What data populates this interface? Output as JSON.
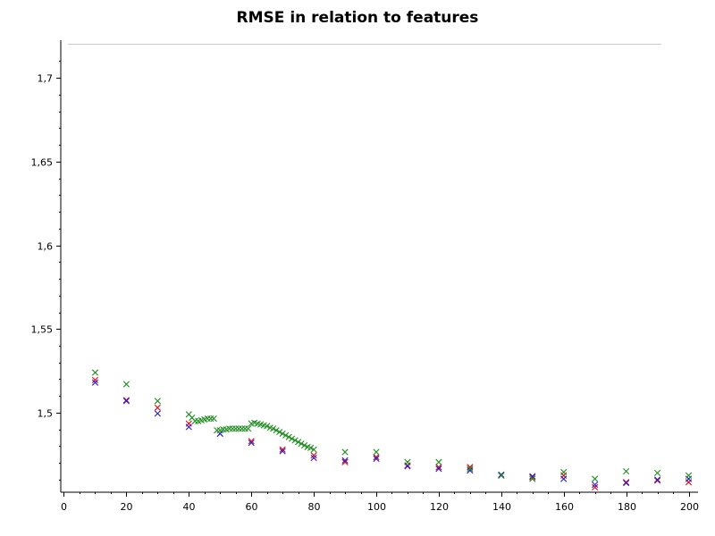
{
  "chart_data": {
    "type": "scatter",
    "title": "RMSE in relation to features",
    "xlabel": "",
    "ylabel": "",
    "xlim": [
      -1,
      203
    ],
    "ylim": [
      1.4525,
      1.7225
    ],
    "x_ticks": [
      0,
      20,
      40,
      60,
      80,
      100,
      120,
      140,
      160,
      180,
      200
    ],
    "x_tick_labels": [
      "0",
      "20",
      "40",
      "60",
      "80",
      "100",
      "120",
      "140",
      "160",
      "180",
      "200"
    ],
    "y_ticks": [
      1.5,
      1.55,
      1.6,
      1.65,
      1.7
    ],
    "y_tick_labels": [
      "1,5",
      "1,55",
      "1,6",
      "1,65",
      "1,7"
    ],
    "grid": false,
    "legend": "none",
    "marker": "x",
    "series": [
      {
        "color": "#e8000b",
        "x": [
          10,
          20,
          30,
          40,
          50,
          60,
          70,
          80,
          90,
          100,
          110,
          120,
          130,
          140,
          150,
          160,
          170,
          180,
          190,
          200
        ],
        "y": [
          1.5195,
          1.5075,
          1.503,
          1.4935,
          1.4875,
          1.483,
          1.478,
          1.4745,
          1.4705,
          1.4735,
          1.4685,
          1.4675,
          1.4675,
          1.4625,
          1.4615,
          1.4625,
          1.4555,
          1.4585,
          1.4595,
          1.4585
        ]
      },
      {
        "color": "#1f1fd6",
        "x": [
          10,
          20,
          30,
          40,
          50,
          60,
          70,
          80,
          90,
          100,
          110,
          120,
          130,
          140,
          150,
          160,
          170,
          180,
          190,
          200
        ],
        "y": [
          1.518,
          1.507,
          1.4995,
          1.4915,
          1.4875,
          1.482,
          1.477,
          1.473,
          1.4715,
          1.4725,
          1.468,
          1.4665,
          1.4655,
          1.463,
          1.462,
          1.4605,
          1.457,
          1.458,
          1.46,
          1.4605
        ]
      },
      {
        "color": "#1f8c1f",
        "x": [
          10,
          20,
          30,
          40,
          41,
          42,
          43,
          44,
          45,
          46,
          47,
          48,
          49,
          50,
          51,
          52,
          53,
          54,
          55,
          56,
          57,
          58,
          59,
          60,
          61,
          62,
          63,
          64,
          65,
          66,
          67,
          68,
          69,
          70,
          71,
          72,
          73,
          74,
          75,
          76,
          77,
          78,
          79,
          80,
          90,
          100,
          110,
          120,
          130,
          140,
          150,
          160,
          170,
          180,
          190,
          200
        ],
        "y": [
          1.524,
          1.517,
          1.507,
          1.499,
          1.497,
          1.495,
          1.495,
          1.4955,
          1.496,
          1.4965,
          1.4965,
          1.4965,
          1.4895,
          1.4895,
          1.49,
          1.49,
          1.4905,
          1.4905,
          1.4905,
          1.4905,
          1.4905,
          1.4905,
          1.4905,
          1.4935,
          1.494,
          1.4935,
          1.493,
          1.4925,
          1.492,
          1.491,
          1.4905,
          1.4895,
          1.4885,
          1.4875,
          1.4865,
          1.4855,
          1.4845,
          1.4835,
          1.4825,
          1.4815,
          1.4805,
          1.4795,
          1.479,
          1.478,
          1.4765,
          1.4765,
          1.4705,
          1.4705,
          1.4665,
          1.4625,
          1.4605,
          1.4645,
          1.4605,
          1.465,
          1.464,
          1.4625
        ]
      }
    ]
  }
}
